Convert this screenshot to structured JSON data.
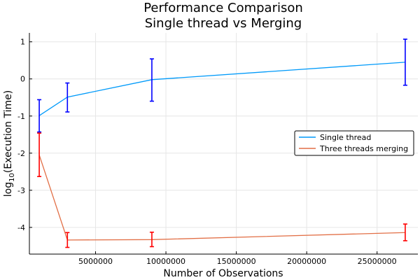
{
  "chart_data": {
    "type": "line",
    "title": [
      "Performance Comparison",
      "Single thread vs Merging"
    ],
    "xlabel": "Number of Observations",
    "ylabel": {
      "prefix": "log",
      "sub": "10",
      "suffix": "(Execution Time)"
    },
    "xlim": [
      300000,
      27900000
    ],
    "ylim": [
      -4.72,
      1.24
    ],
    "xticks": [
      5000000,
      10000000,
      15000000,
      20000000,
      25000000
    ],
    "xtick_labels": [
      "5000000",
      "10000000",
      "15000000",
      "20000000",
      "25000000"
    ],
    "yticks": [
      1,
      0,
      -1,
      -2,
      -3,
      -4
    ],
    "ytick_labels": [
      "1",
      "0",
      "-1",
      "-2",
      "-3",
      "-4"
    ],
    "grid": true,
    "legend_position": "right",
    "series": [
      {
        "name": "Single thread",
        "color": "#009AFA",
        "errorbar_color": "#0000FF",
        "x": [
          1000000,
          3000000,
          9000000,
          27000000
        ],
        "y": [
          -0.99,
          -0.49,
          -0.02,
          0.45
        ],
        "y_low": [
          -1.43,
          -0.89,
          -0.6,
          -0.17
        ],
        "y_high": [
          -0.56,
          -0.11,
          0.54,
          1.07
        ]
      },
      {
        "name": "Three threads merging",
        "color": "#E26F46",
        "errorbar_color": "#FF0000",
        "x": [
          1000000,
          3000000,
          9000000,
          27000000
        ],
        "y": [
          -2.05,
          -4.34,
          -4.33,
          -4.14
        ],
        "y_low": [
          -2.63,
          -4.54,
          -4.52,
          -4.36
        ],
        "y_high": [
          -1.46,
          -4.14,
          -4.13,
          -3.91
        ]
      }
    ]
  }
}
